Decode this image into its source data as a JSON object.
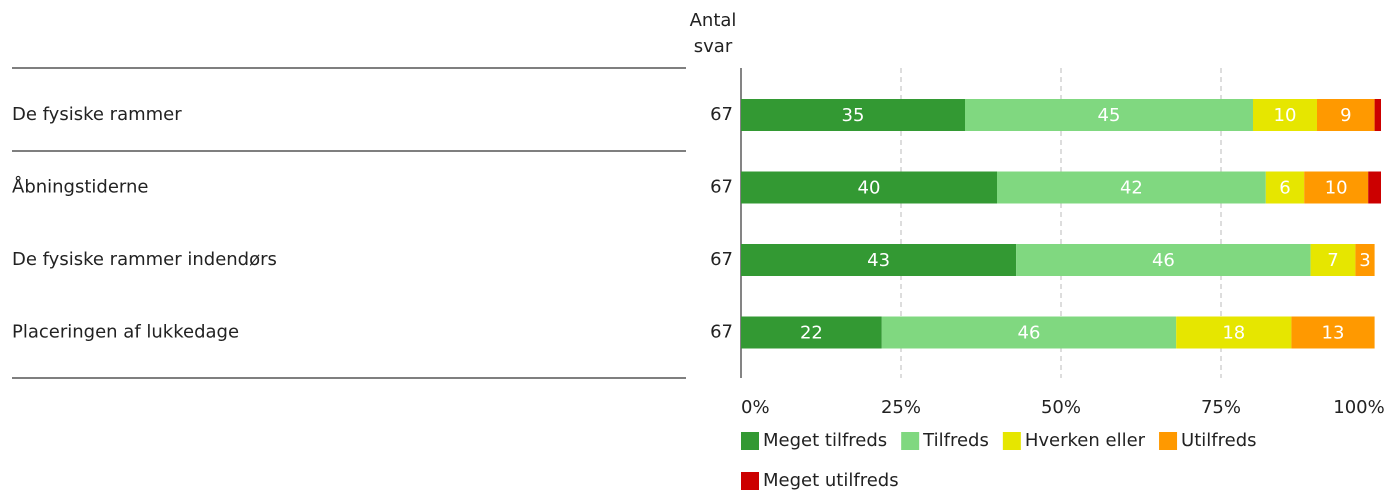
{
  "chart_data": {
    "type": "stacked_bar_horizontal",
    "count_header": "Antal svar",
    "categories": [
      "De fysiske rammer",
      "Åbningstiderne",
      "De fysiske rammer indendørs",
      "Placeringen af lukkedage"
    ],
    "counts": [
      67,
      67,
      67,
      67
    ],
    "series": [
      {
        "name": "Meget tilfreds",
        "color": "#339933",
        "values": [
          35,
          40,
          43,
          22
        ]
      },
      {
        "name": "Tilfreds",
        "color": "#80d880",
        "values": [
          45,
          42,
          46,
          46
        ]
      },
      {
        "name": "Hverken eller",
        "color": "#e6e600",
        "values": [
          10,
          6,
          7,
          18
        ]
      },
      {
        "name": "Utilfreds",
        "color": "#ff9900",
        "values": [
          9,
          10,
          3,
          13
        ]
      },
      {
        "name": "Meget utilfreds",
        "color": "#cc0000",
        "values": [
          1,
          2,
          0,
          0
        ]
      }
    ],
    "xlim": [
      0,
      100
    ],
    "xticks": [
      {
        "value": 0,
        "label": "0%"
      },
      {
        "value": 25,
        "label": "25%"
      },
      {
        "value": 50,
        "label": "50%"
      },
      {
        "value": 75,
        "label": "75%"
      },
      {
        "value": 100,
        "label": "100%"
      }
    ],
    "grid": true,
    "legend": "bottom"
  }
}
